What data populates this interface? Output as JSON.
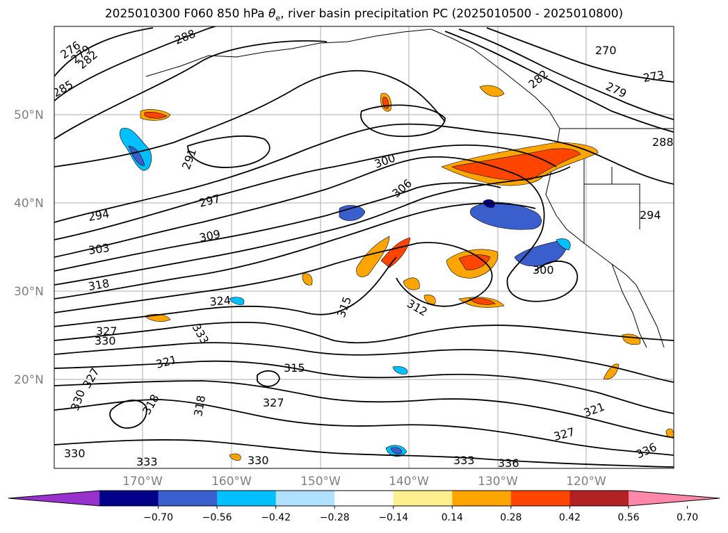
{
  "chart_data": {
    "type": "contour_map",
    "title_prefix": "2025010300 F060 850 hPa ",
    "title_symbol": "θ",
    "title_symbol_sub": "e",
    "title_suffix": ", river basin precipitation PC (2025010500 - 2025010800)",
    "longitude_labels": [
      "170°W",
      "160°W",
      "150°W",
      "140°W",
      "130°W",
      "120°W"
    ],
    "latitude_labels": [
      "50°N",
      "40°N",
      "30°N",
      "20°N"
    ],
    "contour_labels": [
      "276",
      "279",
      "282",
      "285",
      "288",
      "291",
      "294",
      "297",
      "300",
      "303",
      "306",
      "309",
      "312",
      "315",
      "318",
      "321",
      "324",
      "327",
      "330",
      "333",
      "336",
      "270",
      "273"
    ],
    "colorbar": {
      "ticks": [
        "−0.70",
        "−0.56",
        "−0.42",
        "−0.28",
        "−0.14",
        "0.14",
        "0.28",
        "0.42",
        "0.56",
        "0.70"
      ],
      "colors": [
        "#9932cc",
        "#00008b",
        "#3a5fcd",
        "#00bfff",
        "#b0e2ff",
        "#ffffff",
        "#fff08f",
        "#ffa500",
        "#ff4500",
        "#b22222",
        "#ff88aa"
      ]
    }
  }
}
